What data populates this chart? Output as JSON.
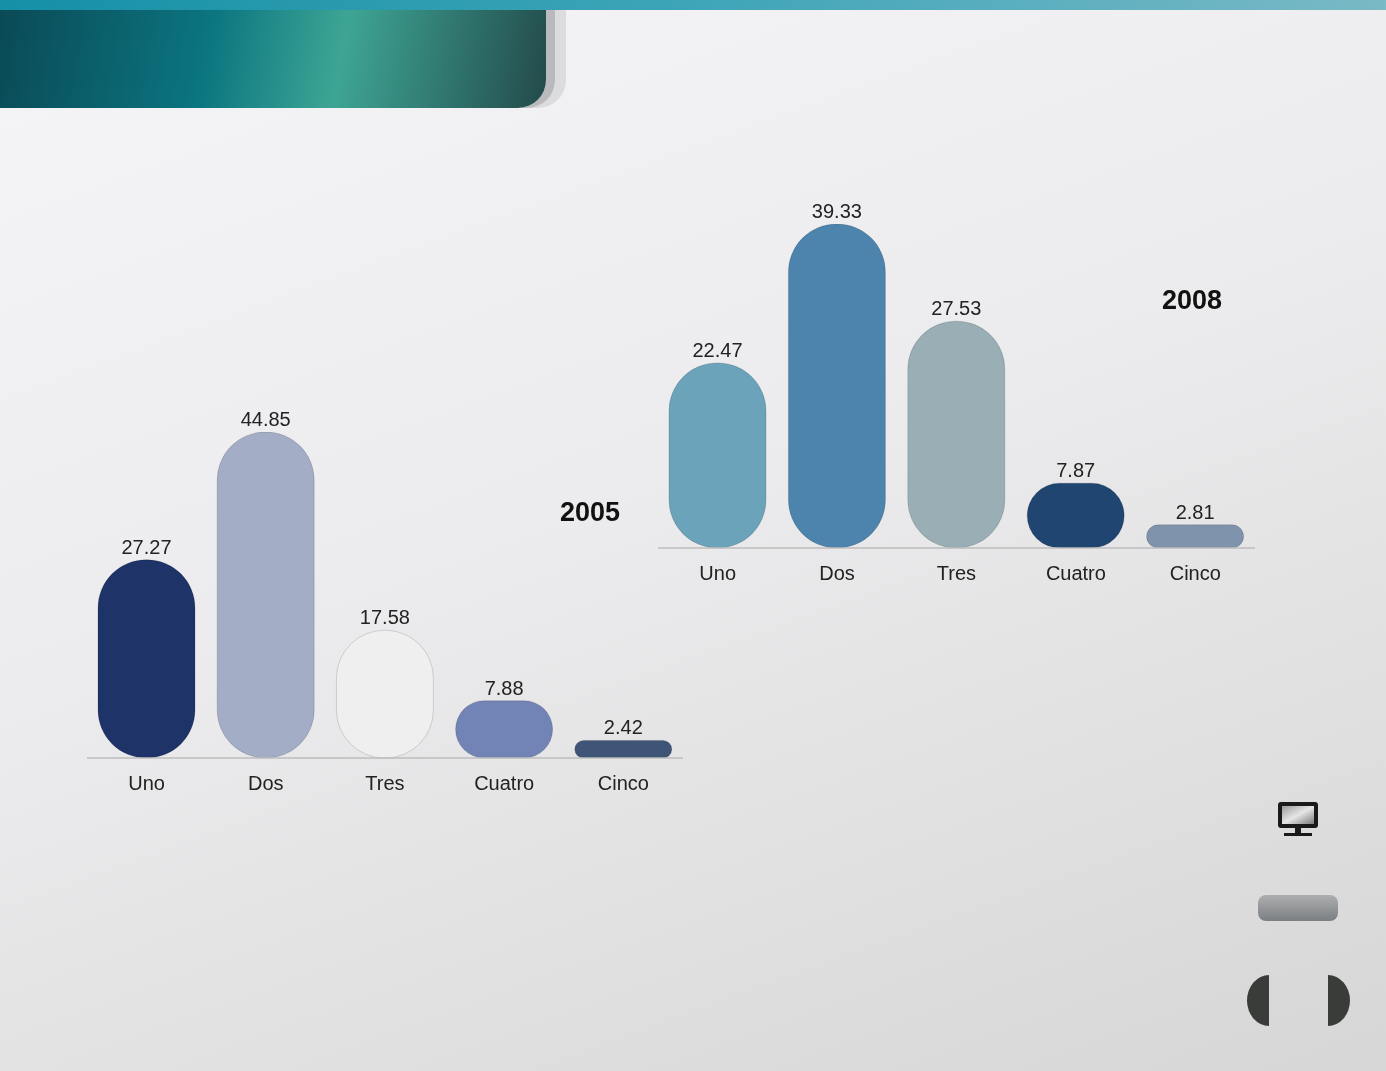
{
  "chart_data": [
    {
      "type": "bar",
      "title": "2005",
      "categories": [
        "Uno",
        "Dos",
        "Tres",
        "Cuatro",
        "Cinco"
      ],
      "values": [
        27.27,
        44.85,
        17.58,
        7.88,
        2.42
      ],
      "colors": [
        "#1e3468",
        "#a3adc6",
        "#efefef",
        "#7283b5",
        "#3f5577"
      ],
      "data_labels": true,
      "tick_labels": "x"
    },
    {
      "type": "bar",
      "title": "2008",
      "categories": [
        "Uno",
        "Dos",
        "Tres",
        "Cuatro",
        "Cinco"
      ],
      "values": [
        22.47,
        39.33,
        27.53,
        7.87,
        2.81
      ],
      "colors": [
        "#6ba3ba",
        "#4d84ad",
        "#9aaeb6",
        "#1f4570",
        "#7f93ad"
      ],
      "data_labels": true,
      "tick_labels": "x"
    }
  ]
}
